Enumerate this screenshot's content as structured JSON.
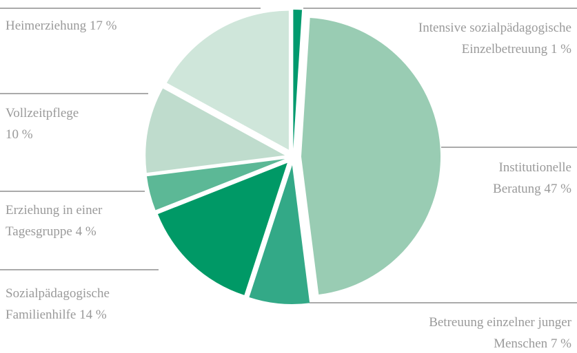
{
  "chart_data": {
    "type": "pie",
    "categories": [
      "Intensive sozialpädagogische Einzelbetreuung",
      "Institutionelle Beratung",
      "Betreuung einzelner junger Menschen",
      "Sozialpädagogische Familienhilfe",
      "Erziehung in einer Tagesgruppe",
      "Vollzeitpflege",
      "Heimerziehung"
    ],
    "values": [
      1,
      47,
      7,
      14,
      4,
      10,
      17
    ],
    "value_labels": [
      "1 %",
      "47 %",
      "7 %",
      "14 %",
      "4 %",
      "10 %",
      "17 %"
    ],
    "colors": [
      "#009a6e",
      "#99ccb3",
      "#33a987",
      "#009966",
      "#5cb896",
      "#bfdccd",
      "#cfe6da"
    ]
  }
}
